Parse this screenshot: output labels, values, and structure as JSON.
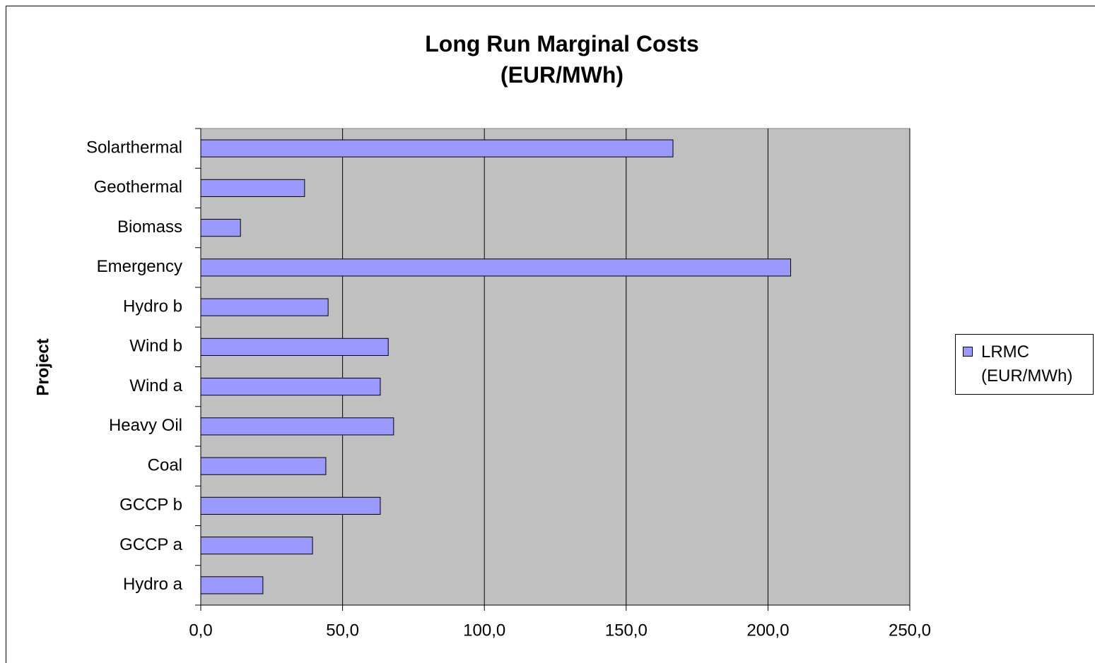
{
  "chart_data": {
    "type": "bar",
    "orientation": "horizontal",
    "title": "Long Run Marginal Costs\n(EUR/MWh)",
    "y_label": "Project",
    "categories": [
      "Hydro a",
      "GCCP a",
      "GCCP b",
      "Coal",
      "Heavy Oil",
      "Wind a",
      "Wind b",
      "Hydro b",
      "Emergency",
      "Biomass",
      "Geothermal",
      "Solarthermal"
    ],
    "series": [
      {
        "name": "LRMC (EUR/MWh)",
        "color": "#9999ff",
        "values": [
          21.9,
          39.4,
          63.3,
          44.1,
          68.0,
          63.3,
          66.1,
          44.9,
          208.0,
          14.0,
          36.6,
          166.5
        ]
      }
    ],
    "xlim": [
      0,
      250
    ],
    "xticks": [
      {
        "value": 0,
        "label": "0,0"
      },
      {
        "value": 50,
        "label": "50,0"
      },
      {
        "value": 100,
        "label": "100,0"
      },
      {
        "value": 150,
        "label": "150,0"
      },
      {
        "value": 200,
        "label": "200,0"
      },
      {
        "value": 250,
        "label": "250,0"
      }
    ],
    "grid": true,
    "legend": "right",
    "plot_background": "#c0c0c0"
  }
}
